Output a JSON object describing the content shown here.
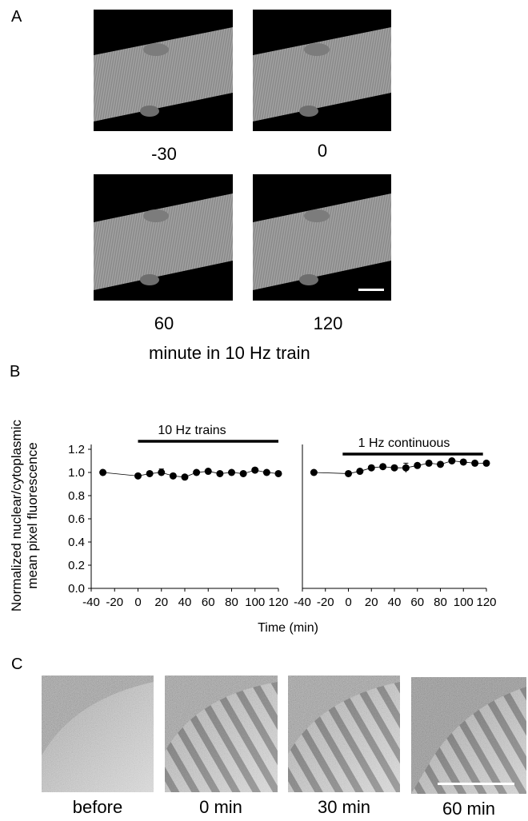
{
  "panel_a": {
    "letter": "A",
    "frames": [
      {
        "label": "-30"
      },
      {
        "label": "0"
      },
      {
        "label": "60"
      },
      {
        "label": "120"
      }
    ],
    "caption": "minute in 10 Hz train"
  },
  "panel_b": {
    "letter": "B"
  },
  "panel_c": {
    "letter": "C",
    "frames": [
      {
        "label": "before"
      },
      {
        "label": "0 min"
      },
      {
        "label": "30 min"
      },
      {
        "label": "60 min"
      }
    ]
  },
  "chart_data": [
    {
      "type": "scatter",
      "title": "10 Hz trains",
      "xlabel": "Time (min)",
      "ylabel": "Normalized nuclear/cytoplasmic mean pixel fluorescence",
      "ylim": [
        0,
        1.2
      ],
      "xlim": [
        -40,
        120
      ],
      "x_ticks": [
        "-40",
        "-20",
        "0",
        "20",
        "40",
        "60",
        "80",
        "100",
        "120"
      ],
      "y_ticks": [
        "0.0",
        "0.2",
        "0.4",
        "0.6",
        "0.8",
        "1.0",
        "1.2"
      ],
      "stimulus_bar": [
        0,
        120
      ],
      "series": [
        {
          "x": [
            -30,
            0,
            10,
            20,
            30,
            40,
            50,
            60,
            70,
            80,
            90,
            100,
            110,
            120
          ],
          "y": [
            1.0,
            0.97,
            0.99,
            1.0,
            0.97,
            0.96,
            1.0,
            1.01,
            0.99,
            1.0,
            0.99,
            1.02,
            1.0,
            0.99
          ],
          "error": [
            0,
            0.01,
            0.01,
            0.03,
            0.01,
            0.01,
            0.01,
            0.01,
            0.01,
            0.01,
            0.01,
            0.01,
            0.01,
            0.01
          ]
        }
      ]
    },
    {
      "type": "scatter",
      "title": "1 Hz continuous",
      "xlabel": "Time (min)",
      "ylim": [
        0,
        1.2
      ],
      "xlim": [
        -40,
        120
      ],
      "x_ticks": [
        "-40",
        "-20",
        "0",
        "20",
        "40",
        "60",
        "80",
        "100",
        "120"
      ],
      "stimulus_bar": [
        -5,
        117
      ],
      "series": [
        {
          "x": [
            -30,
            0,
            10,
            20,
            30,
            40,
            50,
            60,
            70,
            80,
            90,
            100,
            110,
            120
          ],
          "y": [
            1.0,
            0.99,
            1.01,
            1.04,
            1.05,
            1.04,
            1.04,
            1.06,
            1.08,
            1.07,
            1.1,
            1.09,
            1.08,
            1.08
          ],
          "error": [
            0,
            0.01,
            0.02,
            0.02,
            0.02,
            0.02,
            0.04,
            0.02,
            0.02,
            0.02,
            0.02,
            0.02,
            0.02,
            0.02
          ]
        }
      ]
    }
  ]
}
